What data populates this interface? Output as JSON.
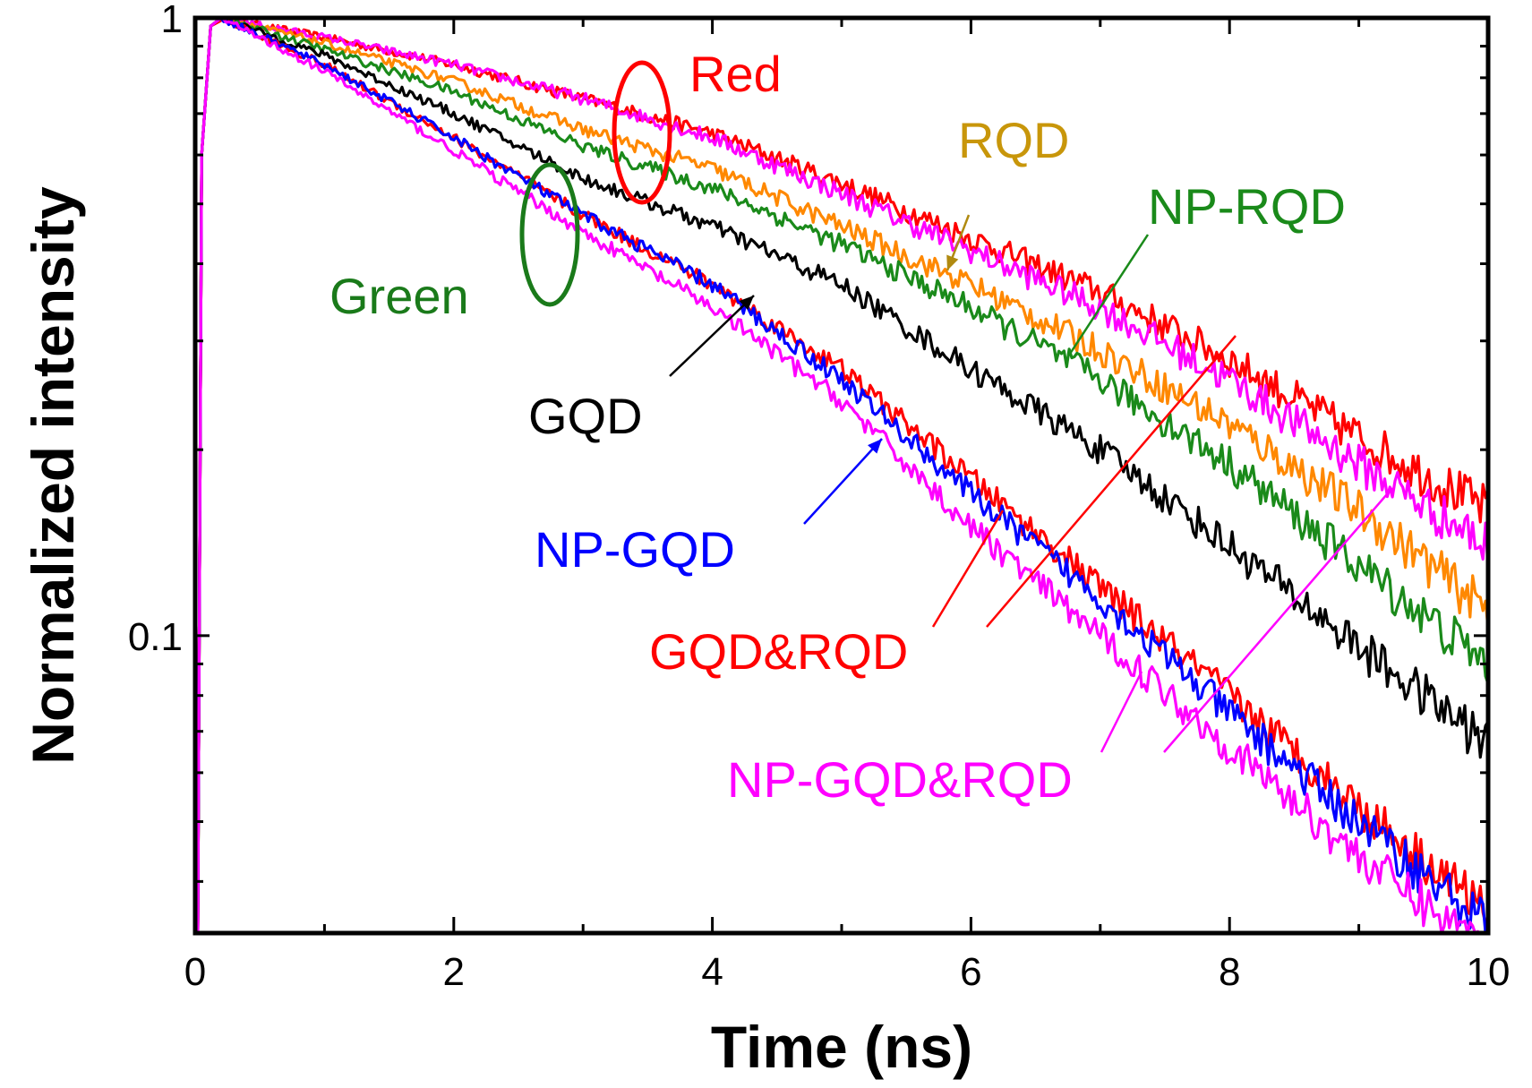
{
  "chart_data": {
    "type": "line",
    "title": "",
    "xlabel": "Time (ns)",
    "ylabel": "Normalized intensity",
    "xlim": [
      0,
      10
    ],
    "ylim": [
      0.033,
      1.0
    ],
    "yscale": "log",
    "grid": false,
    "legend": "none (inline annotations)",
    "x_ticks": [
      0,
      2,
      4,
      6,
      8,
      10
    ],
    "x_tick_labels": [
      "0",
      "2",
      "4",
      "6",
      "8",
      "10"
    ],
    "y_ticks": [
      0.1,
      1
    ],
    "y_tick_labels": [
      "0.1",
      "1"
    ],
    "x": [
      0.2,
      1,
      2,
      3,
      4,
      5,
      6,
      7,
      8,
      9,
      10
    ],
    "series": [
      {
        "name": "Red",
        "color": "#ff0000",
        "values": [
          1.0,
          0.93,
          0.84,
          0.74,
          0.65,
          0.54,
          0.44,
          0.36,
          0.28,
          0.21,
          0.16
        ]
      },
      {
        "name": "Red (magenta)",
        "color": "#ff00ff",
        "values": [
          1.0,
          0.93,
          0.84,
          0.74,
          0.64,
          0.52,
          0.42,
          0.34,
          0.26,
          0.19,
          0.14
        ]
      },
      {
        "name": "RQD",
        "color": "#ff8800",
        "values": [
          1.0,
          0.91,
          0.79,
          0.66,
          0.57,
          0.46,
          0.37,
          0.29,
          0.22,
          0.16,
          0.11
        ]
      },
      {
        "name": "NP-RQD",
        "color": "#1a8a1a",
        "values": [
          1.0,
          0.89,
          0.76,
          0.62,
          0.53,
          0.43,
          0.34,
          0.26,
          0.19,
          0.13,
          0.09
        ]
      },
      {
        "name": "GQD",
        "color": "#000000",
        "values": [
          1.0,
          0.87,
          0.7,
          0.55,
          0.46,
          0.37,
          0.27,
          0.2,
          0.14,
          0.096,
          0.067
        ]
      },
      {
        "name": "GQD&RQD",
        "color": "#ff0000",
        "values": [
          1.0,
          0.84,
          0.64,
          0.48,
          0.37,
          0.27,
          0.18,
          0.12,
          0.08,
          0.053,
          0.036
        ]
      },
      {
        "name": "NP-GQD",
        "color": "#0000ff",
        "values": [
          1.0,
          0.84,
          0.64,
          0.48,
          0.37,
          0.26,
          0.17,
          0.115,
          0.075,
          0.05,
          0.034
        ]
      },
      {
        "name": "NP-GQD&RQD",
        "color": "#ff00ff",
        "values": [
          1.0,
          0.82,
          0.61,
          0.45,
          0.34,
          0.24,
          0.15,
          0.1,
          0.066,
          0.044,
          0.031
        ]
      }
    ],
    "annotations": [
      {
        "text": "Red",
        "color": "#ff0000"
      },
      {
        "text": "RQD",
        "color": "#c8960a"
      },
      {
        "text": "NP-RQD",
        "color": "#1a8a1a"
      },
      {
        "text": "Green",
        "color": "#1a7a1a"
      },
      {
        "text": "GQD",
        "color": "#000000"
      },
      {
        "text": "NP-GQD",
        "color": "#0000ff"
      },
      {
        "text": "GQD&RQD",
        "color": "#ff0000"
      },
      {
        "text": "NP-GQD&RQD",
        "color": "#ff00ff"
      }
    ]
  }
}
